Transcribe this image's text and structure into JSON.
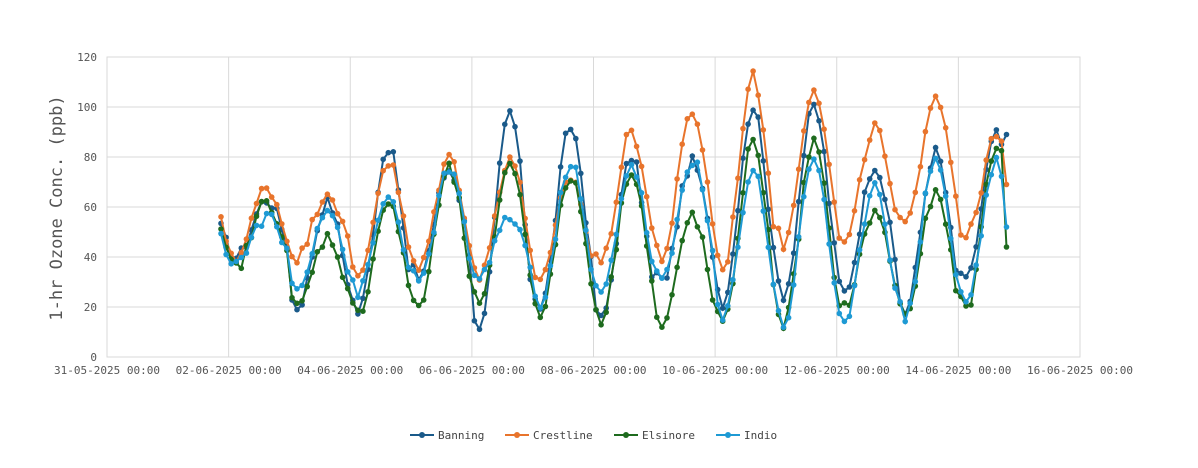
{
  "chart_data": {
    "type": "line",
    "title": "",
    "xlabel": "",
    "ylabel": "1-hr Ozone Conc. (ppb)",
    "ylim": [
      0,
      120
    ],
    "yticks": [
      "0",
      "20",
      "40",
      "60",
      "80",
      "100",
      "120"
    ],
    "xlim": [
      "2025-05-31T00:00",
      "2025-06-16T00:00"
    ],
    "xticks": [
      "31-05-2025 00:00",
      "02-06-2025 00:00",
      "04-06-2025 00:00",
      "06-06-2025 00:00",
      "08-06-2025 00:00",
      "10-06-2025 00:00",
      "12-06-2025 00:00",
      "14-06-2025 00:00",
      "16-06-2025 00:00"
    ],
    "grid": true,
    "legend_position": "bottom",
    "series_shape": "hourly values with daily afternoon peak; values below are estimated daily minima and maxima read from the chart",
    "series": [
      {
        "name": "Banning",
        "color": "#1a5a8a",
        "daily_min": [
          null,
          null,
          40,
          20,
          18,
          32,
          10,
          20,
          15,
          30,
          22,
          25,
          26,
          18,
          30,
          null
        ],
        "daily_max": [
          null,
          null,
          63,
          62,
          84,
          75,
          98,
          92,
          80,
          78,
          100,
          100,
          77,
          82,
          89,
          null
        ],
        "end_value": 89
      },
      {
        "name": "Crestline",
        "color": "#e8742c",
        "daily_min": [
          null,
          null,
          40,
          40,
          32,
          35,
          32,
          30,
          38,
          40,
          35,
          45,
          45,
          52,
          48,
          null
        ],
        "daily_max": [
          null,
          null,
          68,
          66,
          78,
          80,
          80,
          72,
          90,
          98,
          112,
          108,
          92,
          105,
          88,
          null
        ],
        "end_value": 69
      },
      {
        "name": "Elsinore",
        "color": "#1e6b1e",
        "daily_min": [
          null,
          null,
          36,
          20,
          17,
          20,
          20,
          18,
          15,
          12,
          12,
          13,
          20,
          17,
          18,
          null
        ],
        "daily_max": [
          null,
          null,
          62,
          48,
          62,
          75,
          78,
          72,
          75,
          57,
          86,
          86,
          58,
          65,
          85,
          null
        ],
        "end_value": 44
      },
      {
        "name": "Indio",
        "color": "#1e9ad4",
        "daily_min": [
          null,
          null,
          38,
          27,
          26,
          29,
          32,
          20,
          25,
          30,
          15,
          13,
          12,
          16,
          22,
          null
        ],
        "daily_max": [
          null,
          null,
          56,
          60,
          64,
          75,
          56,
          78,
          77,
          79,
          75,
          80,
          70,
          80,
          78,
          null
        ],
        "end_value": 52
      }
    ]
  }
}
